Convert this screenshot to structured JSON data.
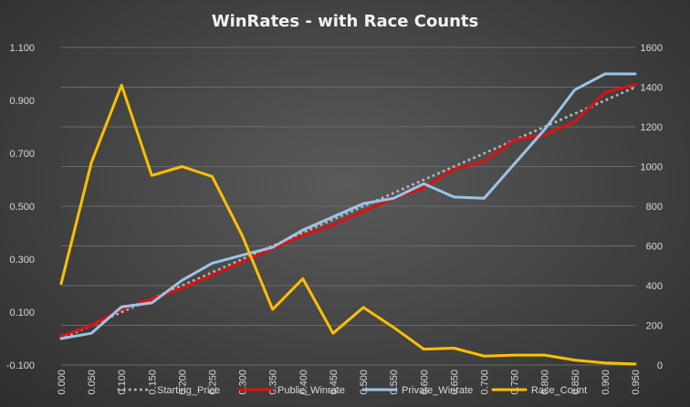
{
  "chart_data": {
    "type": "line",
    "title": "WinRates  - with Race Counts",
    "x": [
      "0.000",
      "0.050",
      "0.100",
      "0.150",
      "0.200",
      "0.250",
      "0.300",
      "0.350",
      "0.400",
      "0.450",
      "0.500",
      "0.550",
      "0.600",
      "0.650",
      "0.700",
      "0.750",
      "0.800",
      "0.850",
      "0.900",
      "0.950"
    ],
    "y_left": {
      "min": -0.1,
      "max": 1.1,
      "ticks": [
        "-0.100",
        "0.100",
        "0.300",
        "0.500",
        "0.700",
        "0.900",
        "1.100"
      ],
      "tick_values": [
        -0.1,
        0.1,
        0.3,
        0.5,
        0.7,
        0.9,
        1.1
      ]
    },
    "y_right": {
      "min": 0,
      "max": 1600,
      "ticks": [
        "0",
        "200",
        "400",
        "600",
        "800",
        "1000",
        "1200",
        "1400",
        "1600"
      ],
      "tick_values": [
        0,
        200,
        400,
        600,
        800,
        1000,
        1200,
        1400,
        1600
      ]
    },
    "grid": true,
    "legend_position": "bottom",
    "series": [
      {
        "name": "Starting_Price",
        "axis": "left",
        "color": "#b4b4b4",
        "style": "dotted",
        "values": [
          0.0,
          0.05,
          0.1,
          0.15,
          0.2,
          0.25,
          0.3,
          0.35,
          0.4,
          0.45,
          0.5,
          0.55,
          0.6,
          0.65,
          0.7,
          0.75,
          0.8,
          0.85,
          0.9,
          0.95
        ]
      },
      {
        "name": "Public_Winrate",
        "axis": "left",
        "color": "#e01010",
        "style": "solid",
        "values": [
          0.01,
          0.05,
          0.11,
          0.15,
          0.19,
          0.24,
          0.29,
          0.34,
          0.39,
          0.43,
          0.48,
          0.53,
          0.57,
          0.64,
          0.67,
          0.75,
          0.77,
          0.82,
          0.93,
          0.96
        ]
      },
      {
        "name": "Private_Winrate",
        "axis": "left",
        "color": "#9dc3e6",
        "style": "solid",
        "values": [
          0.0,
          0.02,
          0.12,
          0.135,
          0.22,
          0.285,
          0.315,
          0.345,
          0.41,
          0.46,
          0.51,
          0.53,
          0.585,
          0.535,
          0.53,
          0.66,
          0.79,
          0.94,
          1.0,
          1.0
        ]
      },
      {
        "name": "Race_Count",
        "axis": "right",
        "color": "#ffc000",
        "style": "solid",
        "values": [
          410,
          1020,
          1410,
          955,
          1000,
          950,
          650,
          280,
          435,
          160,
          290,
          190,
          80,
          85,
          45,
          50,
          50,
          25,
          10,
          5
        ]
      }
    ]
  }
}
